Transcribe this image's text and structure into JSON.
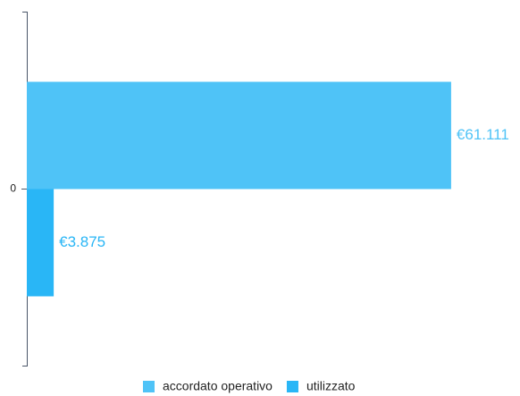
{
  "chart_data": {
    "type": "hbar",
    "categories": [
      "0"
    ],
    "series": [
      {
        "name": "accordato operativo",
        "color": "#4fc3f7",
        "values": [
          61111
        ],
        "value_labels": [
          "€61.111"
        ]
      },
      {
        "name": "utilizzato",
        "color": "#29b6f6",
        "values": [
          3875
        ],
        "value_labels": [
          "€3.875"
        ]
      }
    ],
    "xlim": [
      0,
      70000
    ],
    "legend": "bottom"
  }
}
